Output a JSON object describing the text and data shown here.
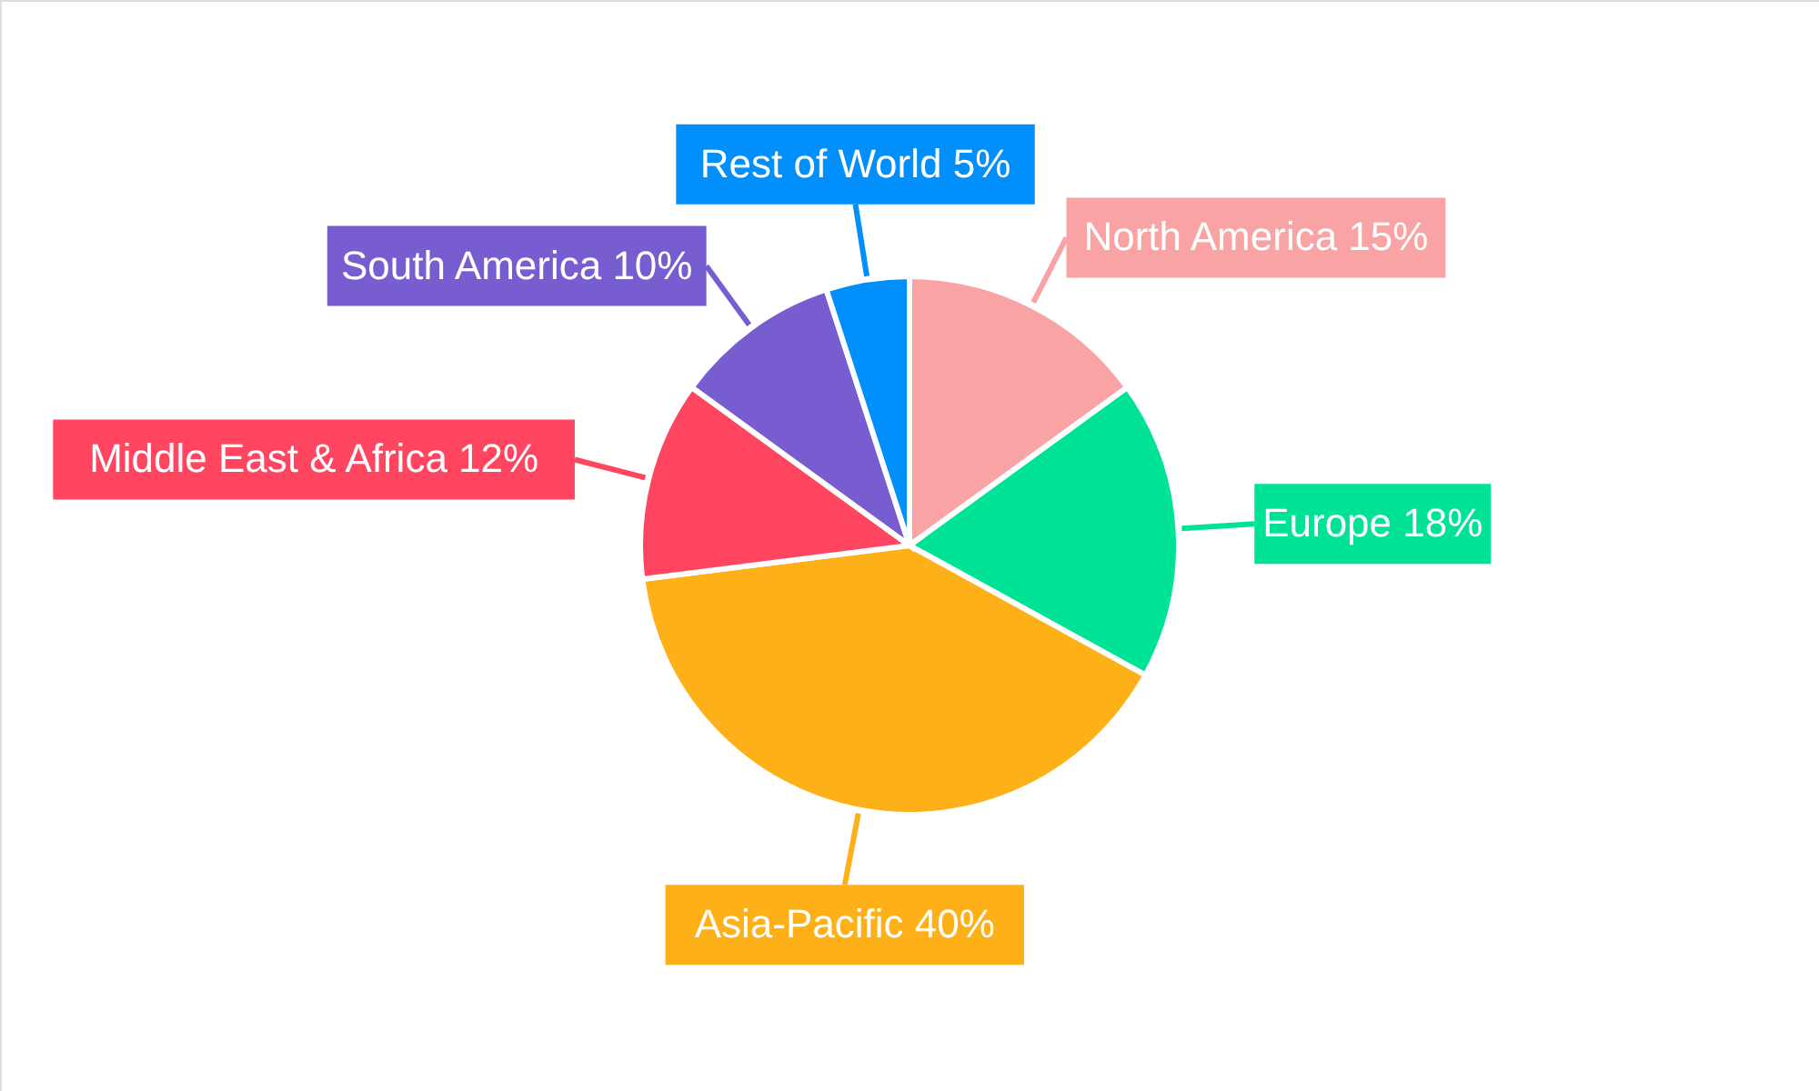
{
  "chart_data": {
    "type": "pie",
    "categories": [
      "North America",
      "Europe",
      "Asia-Pacific",
      "Middle East & Africa",
      "South America",
      "Rest of World"
    ],
    "values": [
      15,
      18,
      40,
      12,
      10,
      5
    ],
    "value_labels": [
      "15%",
      "18%",
      "40%",
      "12%",
      "10%",
      "5%"
    ],
    "colors": [
      "#f9a3a4",
      "#00e396",
      "#feb019",
      "#ff4560",
      "#775dd0",
      "#008ffb"
    ]
  }
}
